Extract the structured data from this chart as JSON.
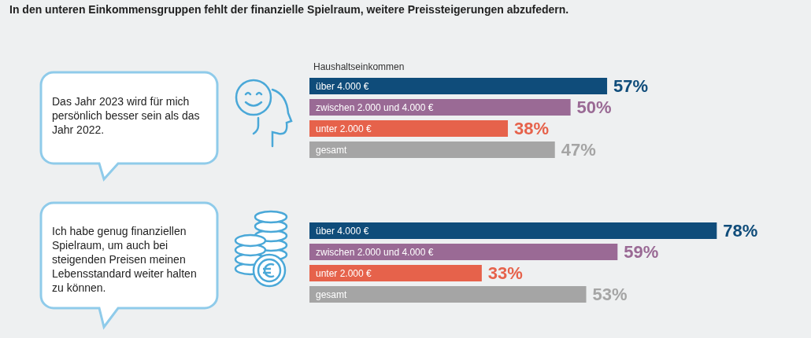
{
  "chart_data": [
    {
      "type": "bar",
      "orientation": "horizontal",
      "title": "In den unteren Einkommensgruppen fehlt der finanzielle Spielraum, weitere Preissteigerungen abzufedern.",
      "ylabel": "Haushaltseinkommen",
      "annotations": [
        "Das Jahr 2023 wird für mich persönlich besser sein als das Jahr 2022."
      ],
      "categories": [
        "über 4.000 €",
        "zwischen 2.000 und 4.000 €",
        "unter 2.000 €",
        "gesamt"
      ],
      "values": [
        57,
        50,
        38,
        47
      ],
      "colors": [
        "#0f4c7a",
        "#9a6a95",
        "#e6624b",
        "#a5a5a5"
      ],
      "value_labels": [
        "57%",
        "50%",
        "38%",
        "47%"
      ]
    },
    {
      "type": "bar",
      "orientation": "horizontal",
      "annotations": [
        "Ich habe genug finanziellen Spielraum, um auch bei steigenden Preisen meinen Lebensstandard weiter halten zu können."
      ],
      "categories": [
        "über 4.000 €",
        "zwischen 2.000 und 4.000 €",
        "unter 2.000 €",
        "gesamt"
      ],
      "values": [
        78,
        59,
        33,
        53
      ],
      "colors": [
        "#0f4c7a",
        "#9a6a95",
        "#e6624b",
        "#a5a5a5"
      ],
      "value_labels": [
        "78%",
        "59%",
        "33%",
        "53%"
      ]
    }
  ]
}
